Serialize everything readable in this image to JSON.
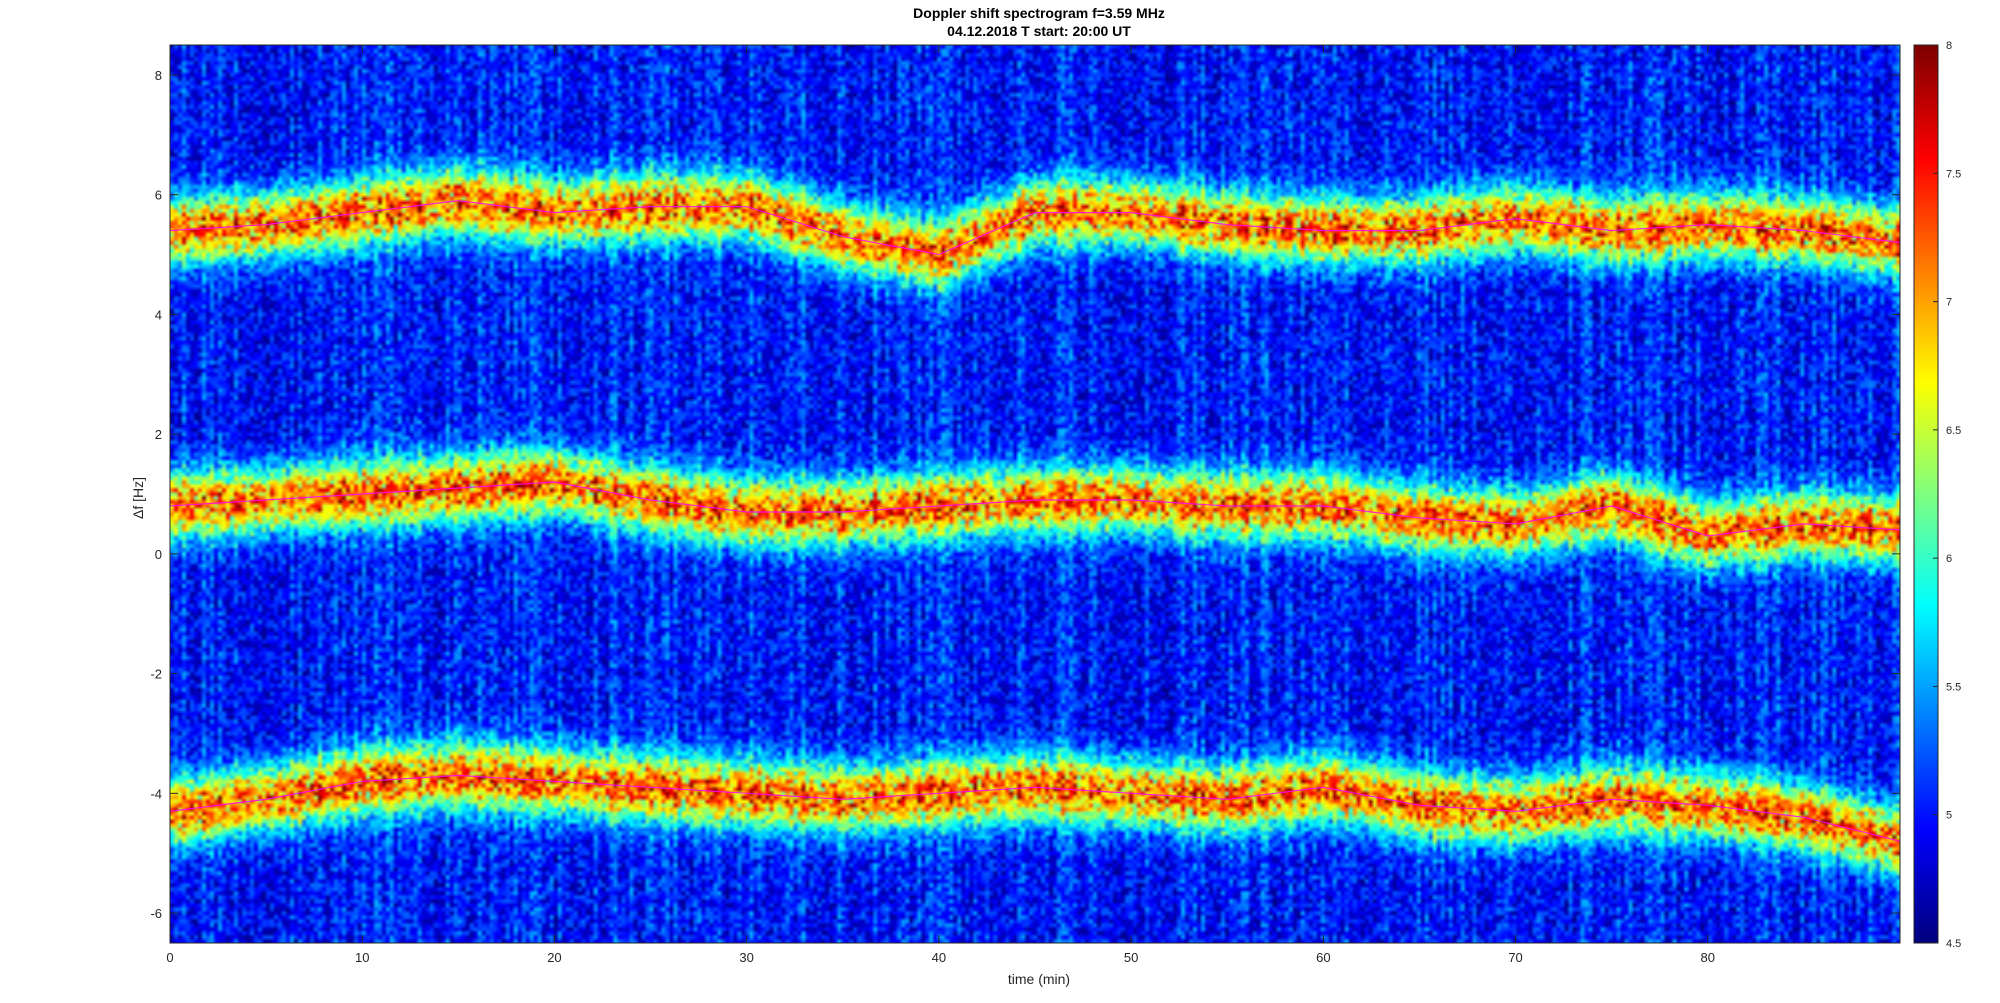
{
  "chart_data": {
    "type": "heatmap",
    "title": "Doppler shift spectrogram f=3.59 MHz",
    "subtitle": "04.12.2018    T start: 20:00 UT",
    "xlabel": "time (min)",
    "ylabel": "Δf [Hz]",
    "xlim": [
      0,
      90
    ],
    "ylim": [
      -6.5,
      8.5
    ],
    "x_ticks": [
      0,
      10,
      20,
      30,
      40,
      50,
      60,
      70,
      80
    ],
    "y_ticks": [
      -6,
      -4,
      -2,
      0,
      2,
      4,
      6,
      8
    ],
    "colorbar": {
      "colormap": "jet",
      "clim": [
        4.5,
        8
      ],
      "ticks": [
        4.5,
        5,
        5.5,
        6,
        6.5,
        7,
        7.5,
        8
      ]
    },
    "ridge_series": [
      {
        "x": [
          0,
          5,
          10,
          15,
          20,
          25,
          30,
          35,
          40,
          45,
          50,
          55,
          60,
          65,
          70,
          75,
          80,
          85,
          90
        ],
        "y": [
          5.4,
          5.5,
          5.7,
          5.9,
          5.7,
          5.8,
          5.8,
          5.3,
          5.0,
          5.7,
          5.7,
          5.5,
          5.4,
          5.4,
          5.6,
          5.4,
          5.5,
          5.4,
          5.2
        ]
      },
      {
        "x": [
          0,
          5,
          10,
          15,
          20,
          25,
          30,
          35,
          40,
          45,
          50,
          55,
          60,
          65,
          70,
          75,
          80,
          85,
          90
        ],
        "y": [
          0.8,
          0.9,
          1.0,
          1.1,
          1.2,
          0.9,
          0.7,
          0.7,
          0.8,
          0.9,
          0.9,
          0.8,
          0.8,
          0.6,
          0.5,
          0.8,
          0.3,
          0.5,
          0.4
        ]
      },
      {
        "x": [
          0,
          5,
          10,
          15,
          20,
          25,
          30,
          35,
          40,
          45,
          50,
          55,
          60,
          65,
          70,
          75,
          80,
          85,
          90
        ],
        "y": [
          -4.3,
          -4.1,
          -3.8,
          -3.7,
          -3.8,
          -3.9,
          -4.0,
          -4.1,
          -4.0,
          -3.9,
          -4.0,
          -4.1,
          -3.9,
          -4.2,
          -4.3,
          -4.1,
          -4.2,
          -4.4,
          -4.8
        ]
      }
    ],
    "colors": {
      "trace": "#ff00ff",
      "frame": "#000000"
    }
  }
}
